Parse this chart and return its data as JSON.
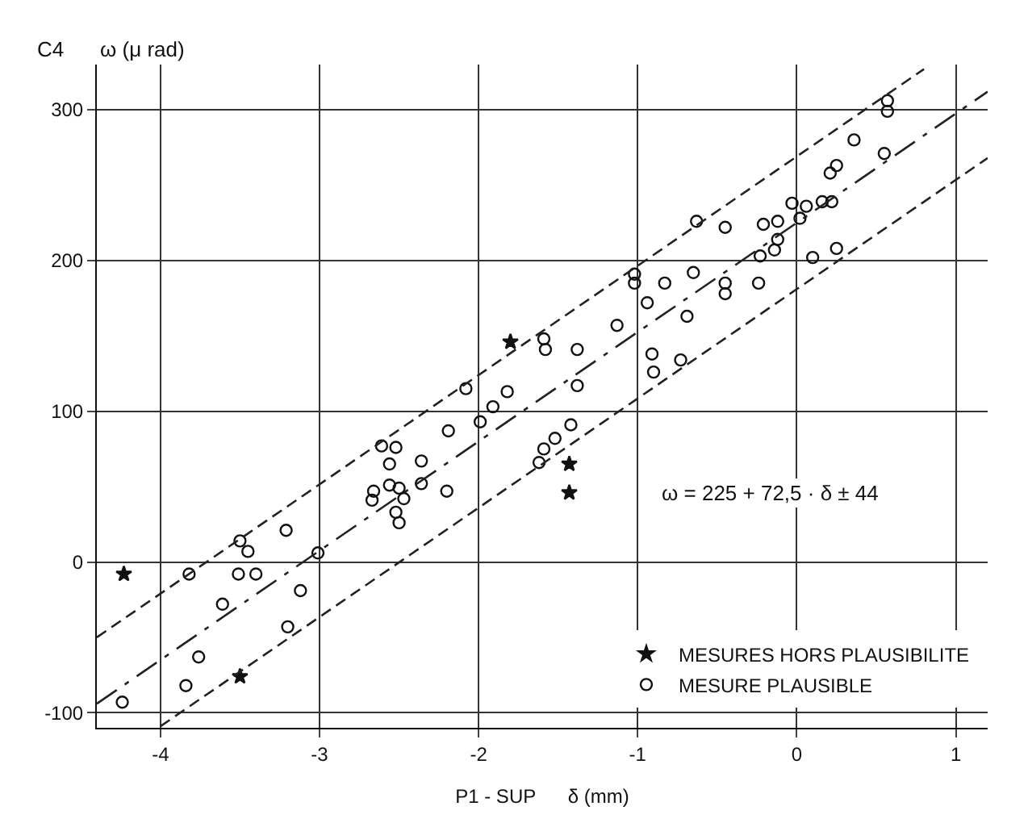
{
  "chart_data": {
    "type": "scatter",
    "title": "C4",
    "ylabel": "ω (μ rad)",
    "xlabel": "P1 - SUP      δ (mm)",
    "xlim": [
      -4.4,
      1.2
    ],
    "ylim": [
      -110,
      330
    ],
    "xticks": [
      -4,
      -3,
      -2,
      -1,
      0,
      1
    ],
    "yticks": [
      -100,
      0,
      100,
      200,
      300
    ],
    "grid": true,
    "legend": "bottom right",
    "annotations": [
      "ω = 225 + 72,5 · δ ± 44"
    ],
    "series": [
      {
        "name": "MESURES HORS PLAUSIBILITE",
        "color": "#111111",
        "marker": "star",
        "x": [
          -4.23,
          -3.5,
          -1.8,
          -1.43,
          -1.43
        ],
        "values": [
          -8,
          -76,
          146,
          65,
          46
        ]
      },
      {
        "name": "MESURE PLAUSIBLE",
        "color": "#111111",
        "marker": "circle",
        "x": [
          -2.61,
          -2.52,
          -2.56,
          -2.36,
          -2.66,
          -2.67,
          -2.56,
          -2.5,
          -2.47,
          -2.36,
          -2.2,
          -2.52,
          -2.5,
          -3.21,
          -3.5,
          -3.45,
          -3.01,
          -3.82,
          -3.51,
          -3.4,
          -3.12,
          -3.61,
          -3.2,
          -3.76,
          -3.84,
          -4.24,
          -1.02,
          -1.02,
          -0.83,
          -0.94,
          -0.69,
          -1.13,
          -1.59,
          -1.58,
          -1.38,
          -0.91,
          -0.9,
          -0.73,
          -1.38,
          -2.08,
          -1.82,
          -1.91,
          -1.99,
          -2.19,
          -1.42,
          -1.52,
          -1.59,
          -1.62,
          0.57,
          0.57,
          0.36,
          0.55,
          0.25,
          0.21,
          -0.03,
          0.06,
          0.16,
          0.22,
          0.02,
          -0.63,
          -0.45,
          -0.21,
          -0.12,
          -0.12,
          -0.14,
          -0.23,
          0.25,
          0.1,
          -0.65,
          -0.45,
          -0.45,
          -0.24
        ],
        "values": [
          77,
          76,
          65,
          67,
          47,
          41,
          51,
          49,
          42,
          52,
          47,
          33,
          26,
          21,
          14,
          7,
          6,
          -8,
          -8,
          -8,
          -19,
          -28,
          -43,
          -63,
          -82,
          -93,
          191,
          185,
          185,
          172,
          163,
          157,
          148,
          141,
          141,
          138,
          126,
          134,
          117,
          115,
          113,
          103,
          93,
          87,
          91,
          82,
          75,
          66,
          306,
          299,
          280,
          271,
          263,
          258,
          238,
          236,
          239,
          239,
          228,
          226,
          222,
          224,
          226,
          214,
          207,
          203,
          208,
          202,
          192,
          185,
          178,
          185
        ]
      },
      {
        "type": "line",
        "color": "#222222",
        "line_style": "dashed",
        "x": [
          -4.4,
          0.8
        ],
        "values": [
          -50,
          327
        ]
      },
      {
        "type": "line",
        "color": "#222222",
        "line_style": "dashdot",
        "x": [
          -4.4,
          1.2
        ],
        "values": [
          -94,
          312
        ]
      },
      {
        "type": "line",
        "color": "#222222",
        "line_style": "dashed",
        "x": [
          -4.0,
          1.2
        ],
        "values": [
          -109,
          268
        ]
      }
    ]
  }
}
